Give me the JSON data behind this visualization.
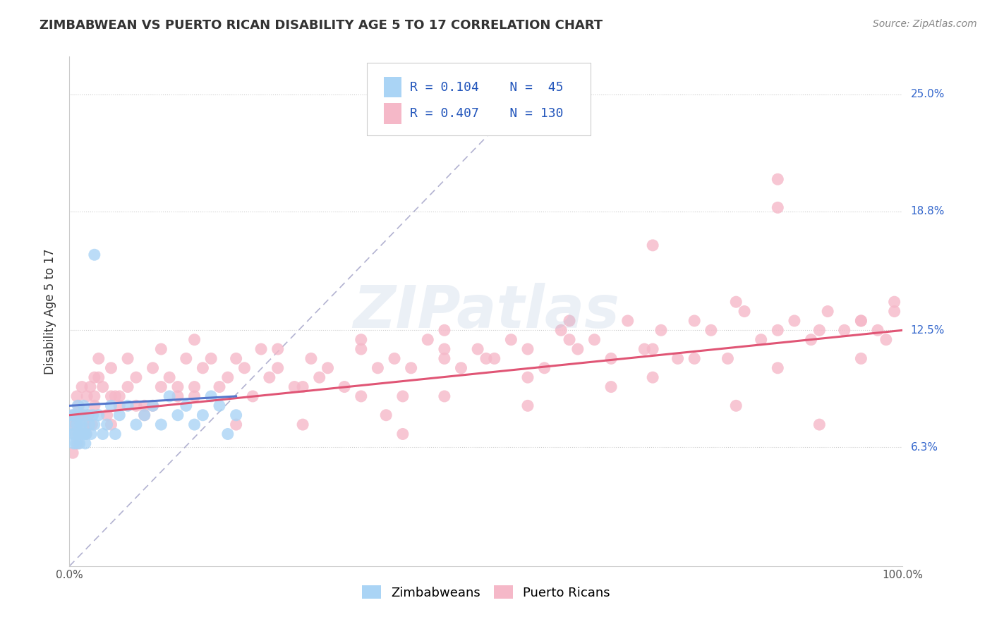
{
  "title": "ZIMBABWEAN VS PUERTO RICAN DISABILITY AGE 5 TO 17 CORRELATION CHART",
  "source_text": "Source: ZipAtlas.com",
  "ylabel": "Disability Age 5 to 17",
  "xlim": [
    0,
    100
  ],
  "ylim": [
    0,
    27
  ],
  "ytick_vals": [
    6.3,
    12.5,
    18.8,
    25.0
  ],
  "ytick_labels": [
    "6.3%",
    "12.5%",
    "18.8%",
    "25.0%"
  ],
  "zimbabwe_color": "#aad4f5",
  "puerto_rico_color": "#f5b8c8",
  "zimbabwe_R": 0.104,
  "zimbabwe_N": 45,
  "puerto_rico_R": 0.407,
  "puerto_rico_N": 130,
  "watermark": "ZIPatlas",
  "legend_label_1": "Zimbabweans",
  "legend_label_2": "Puerto Ricans",
  "zim_trend_color": "#5577cc",
  "pr_trend_color": "#e05575",
  "ref_line_color": "#aaaacc",
  "zim_x": [
    0.2,
    0.3,
    0.4,
    0.5,
    0.6,
    0.7,
    0.8,
    0.9,
    1.0,
    1.1,
    1.2,
    1.3,
    1.4,
    1.5,
    1.6,
    1.7,
    1.8,
    1.9,
    2.0,
    2.2,
    2.4,
    2.6,
    2.8,
    3.0,
    3.5,
    4.0,
    4.5,
    5.0,
    5.5,
    6.0,
    7.0,
    8.0,
    9.0,
    10.0,
    11.0,
    12.0,
    13.0,
    14.0,
    15.0,
    16.0,
    17.0,
    18.0,
    19.0,
    20.0,
    3.0
  ],
  "zim_y": [
    7.5,
    8.0,
    7.0,
    6.5,
    7.0,
    8.0,
    6.5,
    7.5,
    8.5,
    7.0,
    6.5,
    7.5,
    8.0,
    7.5,
    7.0,
    8.5,
    7.0,
    6.5,
    7.0,
    8.0,
    7.5,
    7.0,
    8.0,
    7.5,
    8.0,
    7.0,
    7.5,
    8.5,
    7.0,
    8.0,
    8.5,
    7.5,
    8.0,
    8.5,
    7.5,
    9.0,
    8.0,
    8.5,
    7.5,
    8.0,
    9.0,
    8.5,
    7.0,
    8.0,
    16.5
  ],
  "pr_x": [
    0.3,
    0.5,
    0.7,
    0.9,
    1.1,
    1.3,
    1.5,
    1.7,
    1.9,
    2.1,
    2.3,
    2.5,
    2.7,
    3.0,
    3.5,
    4.0,
    4.5,
    5.0,
    5.5,
    6.0,
    7.0,
    8.0,
    9.0,
    10.0,
    11.0,
    12.0,
    13.0,
    14.0,
    15.0,
    16.0,
    17.0,
    18.0,
    19.0,
    20.0,
    21.0,
    22.0,
    23.0,
    24.0,
    25.0,
    27.0,
    29.0,
    31.0,
    33.0,
    35.0,
    37.0,
    39.0,
    41.0,
    43.0,
    45.0,
    47.0,
    49.0,
    51.0,
    53.0,
    55.0,
    57.0,
    59.0,
    61.0,
    63.0,
    65.0,
    67.0,
    69.0,
    71.0,
    73.0,
    75.0,
    77.0,
    79.0,
    81.0,
    83.0,
    85.0,
    87.0,
    89.0,
    91.0,
    93.0,
    95.0,
    97.0,
    99.0,
    3.0,
    5.0,
    7.0,
    9.0,
    11.0,
    13.0,
    15.0,
    30.0,
    35.0,
    40.0,
    45.0,
    50.0,
    60.0,
    70.0,
    80.0,
    90.0,
    95.0,
    98.0,
    99.0,
    85.0,
    75.0,
    65.0,
    55.0,
    45.0,
    38.0,
    28.0,
    20.0,
    15.0,
    10.0,
    5.0,
    3.0,
    2.0,
    1.5,
    1.0,
    0.8,
    0.6,
    0.4,
    3.5,
    6.0,
    8.0,
    25.0,
    35.0,
    40.0,
    60.0,
    70.0,
    80.0,
    85.0,
    90.0,
    95.0,
    28.0,
    45.0,
    55.0,
    70.0,
    85.0
  ],
  "pr_y": [
    7.5,
    8.0,
    7.0,
    9.0,
    8.5,
    7.0,
    9.5,
    8.0,
    7.5,
    9.0,
    8.0,
    9.5,
    7.5,
    9.0,
    10.0,
    9.5,
    8.0,
    10.5,
    9.0,
    8.5,
    9.5,
    10.0,
    8.5,
    10.5,
    9.5,
    10.0,
    9.0,
    11.0,
    9.5,
    10.5,
    11.0,
    9.5,
    10.0,
    11.0,
    10.5,
    9.0,
    11.5,
    10.0,
    10.5,
    9.5,
    11.0,
    10.5,
    9.5,
    12.0,
    10.5,
    11.0,
    10.5,
    12.0,
    11.0,
    10.5,
    11.5,
    11.0,
    12.0,
    11.5,
    10.5,
    12.5,
    11.5,
    12.0,
    11.0,
    13.0,
    11.5,
    12.5,
    11.0,
    13.0,
    12.5,
    11.0,
    13.5,
    12.0,
    12.5,
    13.0,
    12.0,
    13.5,
    12.5,
    13.0,
    12.5,
    14.0,
    10.0,
    9.0,
    11.0,
    8.0,
    11.5,
    9.5,
    12.0,
    10.0,
    11.5,
    9.0,
    12.5,
    11.0,
    13.0,
    11.5,
    14.0,
    12.5,
    11.0,
    12.0,
    13.5,
    10.5,
    11.0,
    9.5,
    10.0,
    9.0,
    8.0,
    9.5,
    7.5,
    9.0,
    8.5,
    7.5,
    8.5,
    7.0,
    8.0,
    6.5,
    7.5,
    8.0,
    6.0,
    11.0,
    9.0,
    8.5,
    11.5,
    9.0,
    7.0,
    12.0,
    10.0,
    8.5,
    20.5,
    7.5,
    13.0,
    7.5,
    11.5,
    8.5,
    17.0,
    19.0
  ],
  "pr_trend_x0": 0,
  "pr_trend_y0": 8.0,
  "pr_trend_x1": 100,
  "pr_trend_y1": 12.5,
  "zim_trend_x0": 0,
  "zim_trend_y0": 8.5,
  "zim_trend_x1": 20,
  "zim_trend_y1": 9.0,
  "ref_line_x0": 0,
  "ref_line_y0": 0,
  "ref_line_x1": 55,
  "ref_line_y1": 25.0
}
